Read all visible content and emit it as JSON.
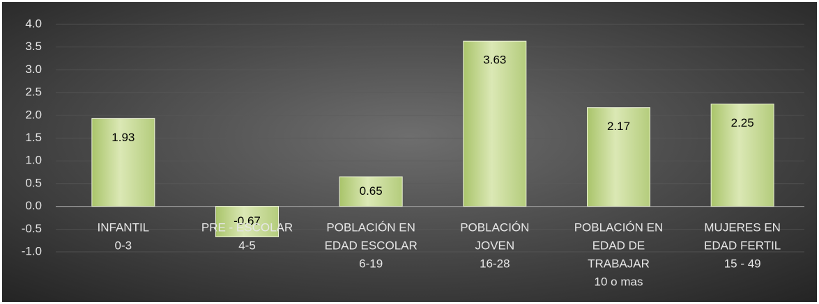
{
  "chart_data": {
    "type": "bar",
    "categories": [
      [
        "INFANTIL",
        "0-3"
      ],
      [
        "PRE - ESCOLAR",
        "4-5"
      ],
      [
        "POBLACIÓN EN",
        "EDAD ESCOLAR",
        "6-19"
      ],
      [
        "POBLACIÓN",
        "JOVEN",
        "16-28"
      ],
      [
        "POBLACIÓN EN",
        "EDAD DE",
        "TRABAJAR",
        "10 o mas"
      ],
      [
        "MUJERES EN",
        "EDAD FERTIL",
        "15 - 49"
      ]
    ],
    "values": [
      1.93,
      -0.67,
      0.65,
      3.63,
      2.17,
      2.25
    ],
    "color": "#c3d69b",
    "ylim": [
      -1,
      4
    ],
    "yticks": [
      {
        "value": -1,
        "label": "-1.0"
      },
      -0.5,
      {
        "value": 0,
        "label": "0.0"
      },
      0.5,
      {
        "value": 1,
        "label": "1.0"
      },
      1.5,
      {
        "value": 2,
        "label": "2.0"
      },
      2.5,
      {
        "value": 3,
        "label": "3.0"
      },
      3.5,
      {
        "value": 4,
        "label": "4.0"
      }
    ],
    "grid": true
  }
}
